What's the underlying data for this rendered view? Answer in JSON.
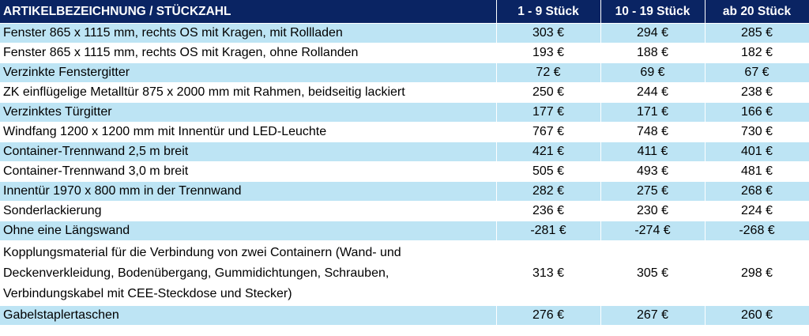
{
  "header": {
    "col_article": "ARTIKELBEZEICHNUNG / STÜCKZAHL",
    "col_tier1": "1 - 9 Stück",
    "col_tier2": "10 - 19 Stück",
    "col_tier3": "ab 20 Stück"
  },
  "colors": {
    "header_bg": "#0a2463",
    "row_alt": "#bde4f4",
    "row_plain": "#ffffff"
  },
  "rows": [
    {
      "name": "Fenster 865 x 1115 mm, rechts OS mit Kragen, mit Rollladen",
      "p1": "303 €",
      "p2": "294 €",
      "p3": "285 €"
    },
    {
      "name": "Fenster 865 x 1115 mm, rechts OS mit Kragen, ohne Rollanden",
      "p1": "193 €",
      "p2": "188 €",
      "p3": "182 €"
    },
    {
      "name": "Verzinkte Fenstergitter",
      "p1": "72 €",
      "p2": "69 €",
      "p3": "67 €"
    },
    {
      "name": "ZK einflügelige Metalltür 875 x 2000 mm mit Rahmen, beidseitig lackiert",
      "p1": "250 €",
      "p2": "244 €",
      "p3": "238 €"
    },
    {
      "name": "Verzinktes Türgitter",
      "p1": "177 €",
      "p2": "171 €",
      "p3": "166 €"
    },
    {
      "name": "Windfang 1200 x 1200 mm mit Innentür und LED-Leuchte",
      "p1": "767 €",
      "p2": "748 €",
      "p3": "730 €"
    },
    {
      "name": "Container-Trennwand 2,5 m breit",
      "p1": "421 €",
      "p2": "411 €",
      "p3": "401 €"
    },
    {
      "name": "Container-Trennwand 3,0 m breit",
      "p1": "505 €",
      "p2": "493 €",
      "p3": "481 €"
    },
    {
      "name": "Innentür 1970 x 800 mm in der Trennwand",
      "p1": "282 €",
      "p2": "275 €",
      "p3": "268 €"
    },
    {
      "name": "Sonderlackierung",
      "p1": "236 €",
      "p2": "230 €",
      "p3": "224 €"
    },
    {
      "name": "Ohne eine Längswand",
      "p1": "-281 €",
      "p2": "-274 €",
      "p3": "-268 €"
    },
    {
      "name": "Kopplungsmaterial für die Verbindung von zwei Containern (Wand- und Deckenverkleidung, Bodenübergang, Gummidichtungen, Schrauben, Verbindungskabel mit CEE-Steckdose und Stecker)",
      "p1": "313 €",
      "p2": "305 €",
      "p3": "298 €"
    },
    {
      "name": "Gabelstaplertaschen",
      "p1": "276 €",
      "p2": "267 €",
      "p3": "260 €"
    }
  ]
}
